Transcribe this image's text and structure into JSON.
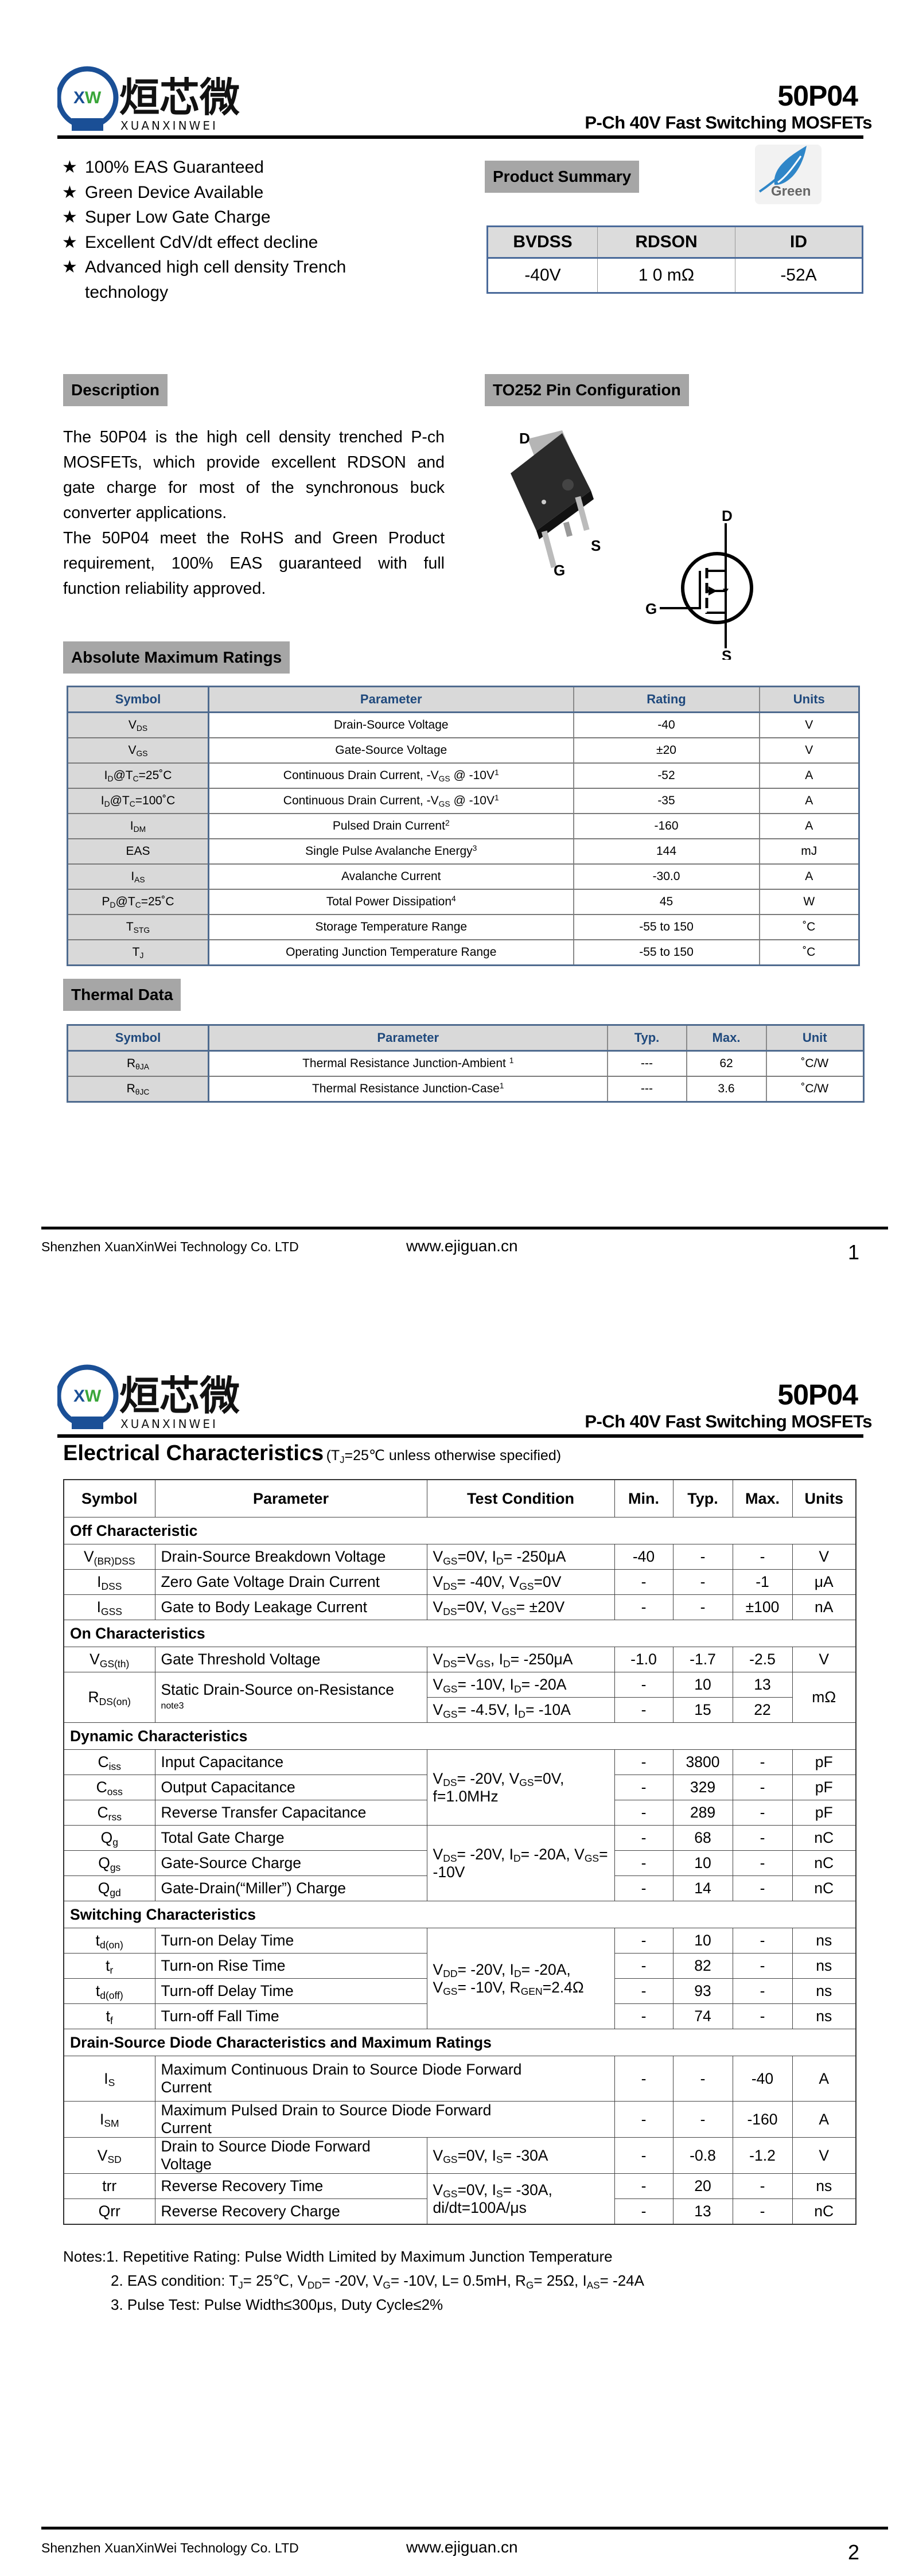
{
  "header": {
    "logo_text": "烜芯微",
    "logo_subtext": "XUANXINWEI",
    "logo_mark": "XW",
    "part_number": "50P04",
    "subtitle": "P-Ch 40V Fast Switching MOSFETs",
    "brand_color": "#1a4f96"
  },
  "features": {
    "bullet": "★",
    "items": [
      "100% EAS Guaranteed",
      "Green Device Available",
      "Super Low Gate Charge",
      "Excellent CdV/dt effect decline",
      "Advanced high cell density Trench technology"
    ]
  },
  "product_summary": {
    "title": "Product Summary",
    "green_badge": "Green",
    "headers": [
      "BVDSS",
      "RDSON",
      "ID"
    ],
    "values": [
      "-40V",
      "1 0 mΩ",
      "-52A"
    ]
  },
  "description": {
    "title": "Description",
    "paragraphs": [
      "The 50P04 is the high cell density trenched P-ch MOSFETs, which provide excellent RDSON and gate charge for most of the synchronous buck converter applications.",
      "The 50P04 meet the RoHS and Green Product requirement, 100% EAS guaranteed with full function reliability approved."
    ]
  },
  "pin_config": {
    "title": "TO252 Pin Configuration",
    "package_labels": {
      "d": "D",
      "g": "G",
      "s": "S"
    },
    "symbol_labels": {
      "d": "D",
      "g": "G",
      "s": "S"
    }
  },
  "abs_max": {
    "title": "Absolute Maximum Ratings",
    "headers": [
      "Symbol",
      "Parameter",
      "Rating",
      "Units"
    ],
    "rows": [
      {
        "symbol": [
          "V",
          {
            "sub": "DS"
          }
        ],
        "parameter": [
          "Drain-Source Voltage"
        ],
        "rating": "-40",
        "unit": "V"
      },
      {
        "symbol": [
          "V",
          {
            "sub": "GS"
          }
        ],
        "parameter": [
          "Gate-Source Voltage"
        ],
        "rating": "±20",
        "unit": "V"
      },
      {
        "symbol": [
          "I",
          {
            "sub": "D"
          },
          "@T",
          {
            "sub": "C"
          },
          "=25˚C"
        ],
        "parameter": [
          "Continuous Drain Current, -V",
          {
            "sub": "GS"
          },
          " @ -10V",
          {
            "sup": "1"
          }
        ],
        "rating": "-52",
        "unit": "A"
      },
      {
        "symbol": [
          "I",
          {
            "sub": "D"
          },
          "@T",
          {
            "sub": "C"
          },
          "=100˚C"
        ],
        "parameter": [
          "Continuous Drain Current, -V",
          {
            "sub": "GS"
          },
          " @ -10V",
          {
            "sup": "1"
          }
        ],
        "rating": "-35",
        "unit": "A"
      },
      {
        "symbol": [
          "I",
          {
            "sub": "DM"
          }
        ],
        "parameter": [
          "Pulsed Drain Current",
          {
            "sup": "2"
          }
        ],
        "rating": "-160",
        "unit": "A"
      },
      {
        "symbol": [
          "EAS"
        ],
        "parameter": [
          "Single Pulse Avalanche Energy",
          {
            "sup": "3"
          }
        ],
        "rating": "144",
        "unit": "mJ"
      },
      {
        "symbol": [
          "I",
          {
            "sub": "AS"
          }
        ],
        "parameter": [
          "Avalanche Current"
        ],
        "rating": "-30.0",
        "unit": "A"
      },
      {
        "symbol": [
          "P",
          {
            "sub": "D"
          },
          "@T",
          {
            "sub": "C"
          },
          "=25˚C"
        ],
        "parameter": [
          "Total Power Dissipation",
          {
            "sup": "4"
          }
        ],
        "rating": "45",
        "unit": "W"
      },
      {
        "symbol": [
          "T",
          {
            "sub": "STG"
          }
        ],
        "parameter": [
          "Storage Temperature Range"
        ],
        "rating": "-55 to 150",
        "unit": "˚C"
      },
      {
        "symbol": [
          "T",
          {
            "sub": "J"
          }
        ],
        "parameter": [
          "Operating Junction Temperature Range"
        ],
        "rating": "-55 to 150",
        "unit": "˚C"
      }
    ]
  },
  "thermal": {
    "title": "Thermal Data",
    "headers": [
      "Symbol",
      "Parameter",
      "Typ.",
      "Max.",
      "Unit"
    ],
    "rows": [
      {
        "symbol": [
          "R",
          {
            "sub": "θJA"
          }
        ],
        "parameter": [
          "Thermal Resistance Junction-Ambient ",
          {
            "sup": "1"
          }
        ],
        "typ": "---",
        "max": "62",
        "unit": "˚C/W"
      },
      {
        "symbol": [
          "R",
          {
            "sub": "θJC"
          }
        ],
        "parameter": [
          "Thermal Resistance Junction-Case",
          {
            "sup": "1"
          }
        ],
        "typ": "---",
        "max": "3.6",
        "unit": "˚C/W"
      }
    ]
  },
  "footer": {
    "company": "Shenzhen XuanXinWei Technology Co. LTD",
    "website": "www.ejiguan.cn",
    "page1": "1",
    "page2": "2"
  },
  "electrical": {
    "title": "Electrical Characteristics",
    "condition_note": [
      "(T",
      {
        "sub": "J"
      },
      "=25℃ unless otherwise specified)"
    ],
    "headers": [
      "Symbol",
      "Parameter",
      "Test Condition",
      "Min.",
      "Typ.",
      "Max.",
      "Units"
    ],
    "sections": [
      {
        "title": "Off Characteristic",
        "rows": [
          {
            "symbol": [
              "V",
              {
                "sub": "(BR)DSS"
              }
            ],
            "parameter": [
              "Drain-Source Breakdown Voltage"
            ],
            "condition": [
              "V",
              {
                "sub": "GS"
              },
              "=0V, I",
              {
                "sub": "D"
              },
              "= -250μA"
            ],
            "min": "-40",
            "typ": "-",
            "max": "-",
            "unit": "V"
          },
          {
            "symbol": [
              "I",
              {
                "sub": "DSS"
              }
            ],
            "parameter": [
              "Zero Gate Voltage Drain Current"
            ],
            "condition": [
              "V",
              {
                "sub": "DS"
              },
              "= -40V, V",
              {
                "sub": "GS"
              },
              "=0V"
            ],
            "min": "-",
            "typ": "-",
            "max": "-1",
            "unit": "μA"
          },
          {
            "symbol": [
              "I",
              {
                "sub": "GSS"
              }
            ],
            "parameter": [
              "Gate to Body Leakage Current"
            ],
            "condition": [
              "V",
              {
                "sub": "DS"
              },
              "=0V, V",
              {
                "sub": "GS"
              },
              "= ±20V"
            ],
            "min": "-",
            "typ": "-",
            "max": "±100",
            "unit": "nA"
          }
        ]
      },
      {
        "title": "On Characteristics",
        "rows": [
          {
            "symbol": [
              "V",
              {
                "sub": "GS(th)"
              }
            ],
            "parameter": [
              "Gate Threshold Voltage"
            ],
            "condition": [
              "V",
              {
                "sub": "DS"
              },
              "=V",
              {
                "sub": "GS"
              },
              ", I",
              {
                "sub": "D"
              },
              "= -250μA"
            ],
            "min": "-1.0",
            "typ": "-1.7",
            "max": "-2.5",
            "unit": "V"
          },
          {
            "symbol": [
              "R",
              {
                "sub": "DS(on)"
              }
            ],
            "symbol_rows": 2,
            "parameter": [
              "Static Drain-Source on-Resistance"
            ],
            "parameter_note": "note3",
            "parameter_rows": 2,
            "condition": [
              "V",
              {
                "sub": "GS"
              },
              "= -10V, I",
              {
                "sub": "D"
              },
              "= -20A"
            ],
            "min": "-",
            "typ": "10",
            "max": "13",
            "unit": "mΩ",
            "unit_rows": 2
          },
          {
            "symbol": null,
            "parameter": null,
            "condition": [
              "V",
              {
                "sub": "GS"
              },
              "= -4.5V, I",
              {
                "sub": "D"
              },
              "= -10A"
            ],
            "min": "-",
            "typ": "15",
            "max": "22",
            "unit": null
          }
        ]
      },
      {
        "title": "Dynamic Characteristics",
        "rows": [
          {
            "symbol": [
              "C",
              {
                "sub": "iss"
              }
            ],
            "parameter": [
              "Input Capacitance"
            ],
            "condition": [
              "V",
              {
                "sub": "DS"
              },
              "= -20V, V",
              {
                "sub": "GS"
              },
              "=0V, f=1.0MHz"
            ],
            "condition_rows": 3,
            "min": "-",
            "typ": "3800",
            "max": "-",
            "unit": "pF"
          },
          {
            "symbol": [
              "C",
              {
                "sub": "oss"
              }
            ],
            "parameter": [
              "Output Capacitance"
            ],
            "condition": null,
            "min": "-",
            "typ": "329",
            "max": "-",
            "unit": "pF"
          },
          {
            "symbol": [
              "C",
              {
                "sub": "rss"
              }
            ],
            "parameter": [
              "Reverse Transfer Capacitance"
            ],
            "condition": null,
            "min": "-",
            "typ": "289",
            "max": "-",
            "unit": "pF"
          },
          {
            "symbol": [
              "Q",
              {
                "sub": "g"
              }
            ],
            "parameter": [
              "Total Gate Charge"
            ],
            "condition": [
              "V",
              {
                "sub": "DS"
              },
              "= -20V, I",
              {
                "sub": "D"
              },
              "= -20A, V",
              {
                "sub": "GS"
              },
              "= -10V"
            ],
            "condition_rows": 3,
            "min": "-",
            "typ": "68",
            "max": "-",
            "unit": "nC"
          },
          {
            "symbol": [
              "Q",
              {
                "sub": "gs"
              }
            ],
            "parameter": [
              "Gate-Source Charge"
            ],
            "condition": null,
            "min": "-",
            "typ": "10",
            "max": "-",
            "unit": "nC"
          },
          {
            "symbol": [
              "Q",
              {
                "sub": "gd"
              }
            ],
            "parameter": [
              "Gate-Drain(“Miller”) Charge"
            ],
            "condition": null,
            "min": "-",
            "typ": "14",
            "max": "-",
            "unit": "nC"
          }
        ]
      },
      {
        "title": "Switching Characteristics",
        "rows": [
          {
            "symbol": [
              "t",
              {
                "sub": "d(on)"
              }
            ],
            "parameter": [
              "Turn-on Delay Time"
            ],
            "condition": [
              "V",
              {
                "sub": "DD"
              },
              "= -20V, I",
              {
                "sub": "D"
              },
              "= -20A, V",
              {
                "sub": "GS"
              },
              "= -10V, R",
              {
                "sub": "GEN"
              },
              "=2.4Ω"
            ],
            "condition_rows": 4,
            "min": "-",
            "typ": "10",
            "max": "-",
            "unit": "ns"
          },
          {
            "symbol": [
              "t",
              {
                "sub": "r"
              }
            ],
            "parameter": [
              "Turn-on Rise Time"
            ],
            "condition": null,
            "min": "-",
            "typ": "82",
            "max": "-",
            "unit": "ns"
          },
          {
            "symbol": [
              "t",
              {
                "sub": "d(off)"
              }
            ],
            "parameter": [
              "Turn-off Delay Time"
            ],
            "condition": null,
            "min": "-",
            "typ": "93",
            "max": "-",
            "unit": "ns"
          },
          {
            "symbol": [
              "t",
              {
                "sub": "f"
              }
            ],
            "parameter": [
              "Turn-off Fall Time"
            ],
            "condition": null,
            "min": "-",
            "typ": "74",
            "max": "-",
            "unit": "ns"
          }
        ]
      },
      {
        "title": "Drain-Source Diode Characteristics and Maximum Ratings",
        "rows": [
          {
            "symbol": [
              "I",
              {
                "sub": "S"
              }
            ],
            "parameter": [
              "Maximum Continuous Drain to Source Diode Forward Current"
            ],
            "parameter_cols": 2,
            "min": "-",
            "typ": "-",
            "max": "-40",
            "unit": "A"
          },
          {
            "symbol": [
              "I",
              {
                "sub": "SM"
              }
            ],
            "parameter": [
              "Maximum Pulsed Drain to Source Diode Forward Current"
            ],
            "parameter_cols": 2,
            "min": "-",
            "typ": "-",
            "max": "-160",
            "unit": "A"
          },
          {
            "symbol": [
              "V",
              {
                "sub": "SD"
              }
            ],
            "parameter": [
              "Drain to Source Diode Forward Voltage"
            ],
            "condition": [
              "V",
              {
                "sub": "GS"
              },
              "=0V, I",
              {
                "sub": "S"
              },
              "= -30A"
            ],
            "min": "-",
            "typ": "-0.8",
            "max": "-1.2",
            "unit": "V"
          },
          {
            "symbol": [
              "trr"
            ],
            "parameter": [
              "Reverse Recovery Time"
            ],
            "condition": [
              "V",
              {
                "sub": "GS"
              },
              "=0V, I",
              {
                "sub": "S"
              },
              "= -30A, di/dt=100A/μs"
            ],
            "condition_rows": 2,
            "min": "-",
            "typ": "20",
            "max": "-",
            "unit": "ns"
          },
          {
            "symbol": [
              "Qrr"
            ],
            "parameter": [
              "Reverse Recovery Charge"
            ],
            "condition": null,
            "min": "-",
            "typ": "13",
            "max": "-",
            "unit": "nC"
          }
        ]
      }
    ],
    "notes": [
      [
        "Notes:1. Repetitive Rating: Pulse Width Limited by Maximum Junction Temperature"
      ],
      [
        "2. EAS condition: T",
        {
          "sub": "J"
        },
        "= 25℃, V",
        {
          "sub": "DD"
        },
        "= -20V, V",
        {
          "sub": "G"
        },
        "= -10V, L= 0.5mH, R",
        {
          "sub": "G"
        },
        "= 25Ω, I",
        {
          "sub": "AS"
        },
        "= -24A"
      ],
      [
        "3. Pulse Test: Pulse Width≤300μs, Duty Cycle≤2%"
      ]
    ]
  }
}
